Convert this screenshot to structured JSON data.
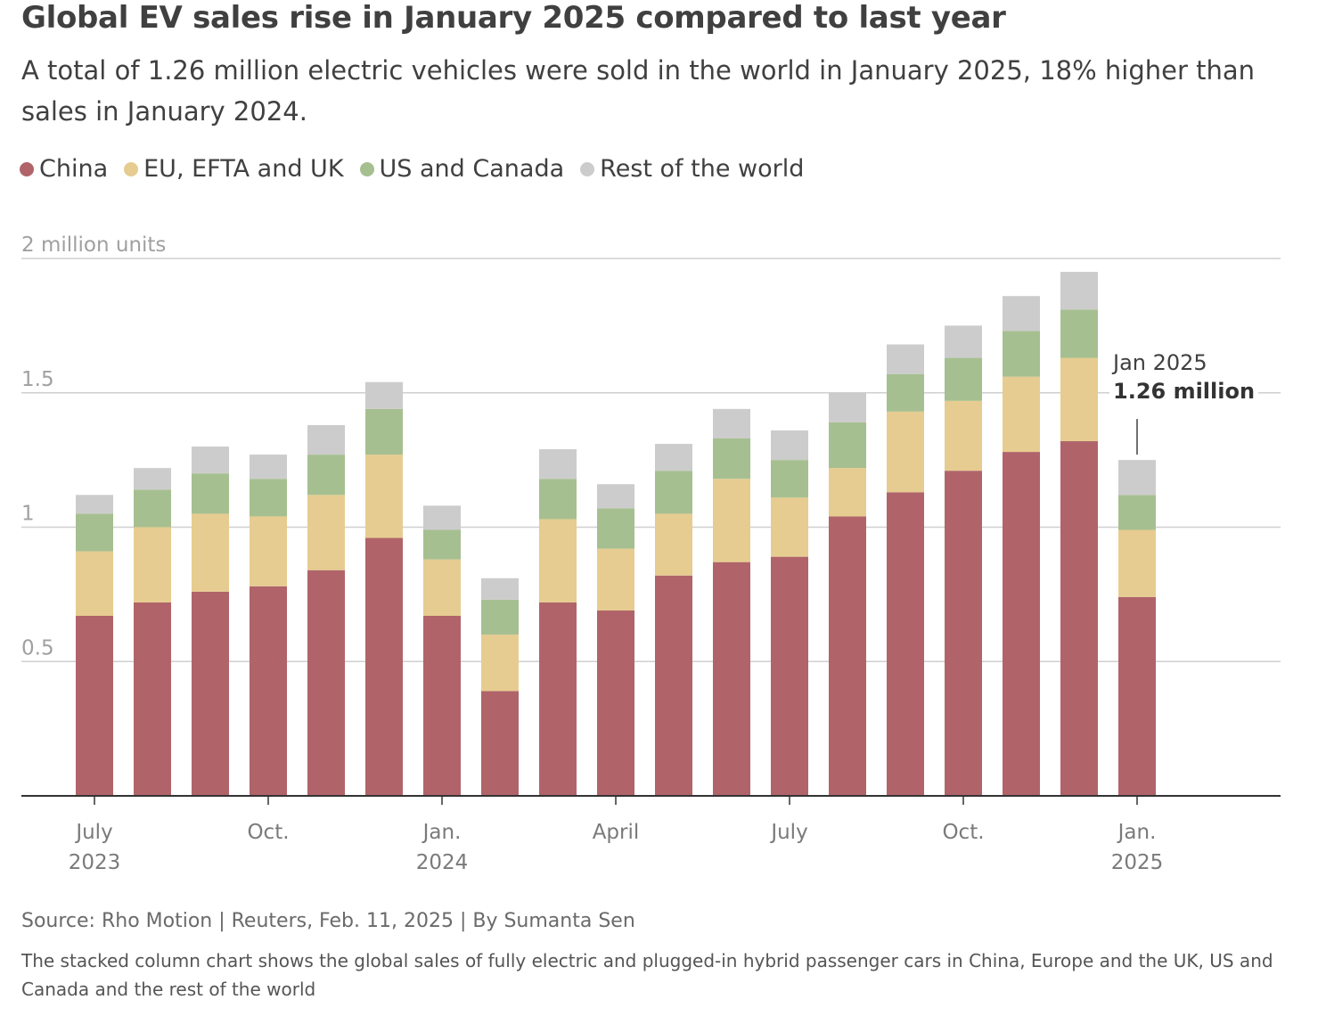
{
  "title": "Global EV sales rise in January 2025 compared to last year",
  "subtitle": "A total of 1.26 million electric vehicles were sold in the world in January 2025, 18% higher than sales in January 2024.",
  "legend": [
    {
      "label": "China",
      "color": "#b0646a"
    },
    {
      "label": "EU, EFTA and UK",
      "color": "#e6cc90"
    },
    {
      "label": "US and Canada",
      "color": "#a6bf90"
    },
    {
      "label": "Rest of the world",
      "color": "#cccccc"
    }
  ],
  "y_unit_label": "2 million units",
  "y_ticks": [
    {
      "value": 0.5,
      "label": "0.5"
    },
    {
      "value": 1,
      "label": "1"
    },
    {
      "value": 1.5,
      "label": "1.5"
    },
    {
      "value": 2,
      "label": "2 million units"
    }
  ],
  "x_tick_labels": [
    {
      "index": 0,
      "line1": "July",
      "line2": "2023"
    },
    {
      "index": 3,
      "line1": "Oct.",
      "line2": ""
    },
    {
      "index": 6,
      "line1": "Jan.",
      "line2": "2024"
    },
    {
      "index": 9,
      "line1": "April",
      "line2": ""
    },
    {
      "index": 12,
      "line1": "July",
      "line2": ""
    },
    {
      "index": 15,
      "line1": "Oct.",
      "line2": ""
    },
    {
      "index": 18,
      "line1": "Jan.",
      "line2": "2025"
    }
  ],
  "annotation": {
    "index": 18,
    "line1": "Jan 2025",
    "line2": "1.26 million"
  },
  "chart_data": {
    "type": "bar",
    "stacked": true,
    "categories": [
      "Jul 2023",
      "Aug 2023",
      "Sep 2023",
      "Oct 2023",
      "Nov 2023",
      "Dec 2023",
      "Jan 2024",
      "Feb 2024",
      "Mar 2024",
      "Apr 2024",
      "May 2024",
      "Jun 2024",
      "Jul 2024",
      "Aug 2024",
      "Sep 2024",
      "Oct 2024",
      "Nov 2024",
      "Dec 2024",
      "Jan 2025"
    ],
    "series": [
      {
        "name": "China",
        "values": [
          0.67,
          0.72,
          0.76,
          0.78,
          0.84,
          0.96,
          0.67,
          0.39,
          0.72,
          0.69,
          0.82,
          0.87,
          0.89,
          1.04,
          1.13,
          1.21,
          1.28,
          1.32,
          0.74
        ]
      },
      {
        "name": "EU, EFTA and UK",
        "values": [
          0.24,
          0.28,
          0.29,
          0.26,
          0.28,
          0.31,
          0.21,
          0.21,
          0.31,
          0.23,
          0.23,
          0.31,
          0.22,
          0.18,
          0.3,
          0.26,
          0.28,
          0.31,
          0.25
        ]
      },
      {
        "name": "US and Canada",
        "values": [
          0.14,
          0.14,
          0.15,
          0.14,
          0.15,
          0.17,
          0.11,
          0.13,
          0.15,
          0.15,
          0.16,
          0.15,
          0.14,
          0.17,
          0.14,
          0.16,
          0.17,
          0.18,
          0.13
        ]
      },
      {
        "name": "Rest of the world",
        "values": [
          0.07,
          0.08,
          0.1,
          0.09,
          0.11,
          0.1,
          0.09,
          0.08,
          0.11,
          0.09,
          0.1,
          0.11,
          0.11,
          0.11,
          0.11,
          0.12,
          0.13,
          0.14,
          0.13
        ]
      }
    ],
    "ylim": [
      0,
      2
    ],
    "ylabel": "2 million units",
    "grid": true
  },
  "source": "Source: Rho Motion | Reuters, Feb. 11, 2025 | By Sumanta Sen",
  "description": "The stacked column chart shows the global sales of fully electric and plugged-in hybrid passenger cars in China, Europe and the UK, US and Canada and the rest of the world"
}
